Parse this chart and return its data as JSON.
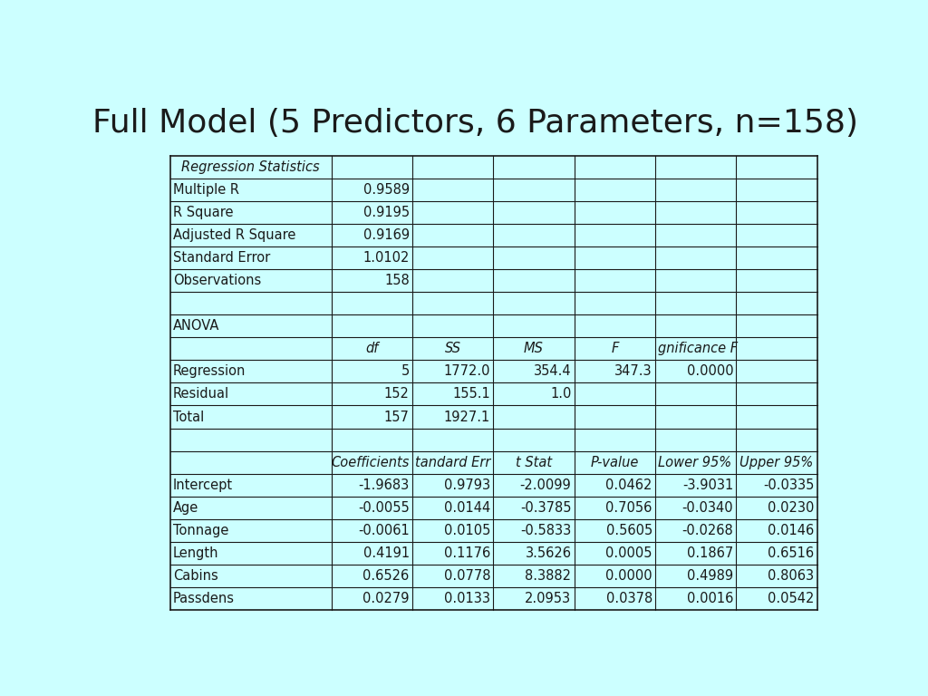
{
  "title": "Full Model (5 Predictors, 6 Parameters, n=158)",
  "background_color": "#CCFFFF",
  "title_color": "#1a1a1a",
  "title_fontsize": 26,
  "cell_text_color": "#1a1a1a",
  "border_color": "#1a1a1a",
  "reg_stats_rows": [
    [
      "Multiple R",
      "0.9589",
      "",
      "",
      "",
      ""
    ],
    [
      "R Square",
      "0.9195",
      "",
      "",
      "",
      ""
    ],
    [
      "Adjusted R Square",
      "0.9169",
      "",
      "",
      "",
      ""
    ],
    [
      "Standard Error",
      "1.0102",
      "",
      "",
      "",
      ""
    ],
    [
      "Observations",
      "158",
      "",
      "",
      "",
      ""
    ]
  ],
  "anova_data_rows": [
    [
      "Regression",
      "5",
      "1772.0",
      "354.4",
      "347.3",
      "0.0000"
    ],
    [
      "Residual",
      "152",
      "155.1",
      "1.0",
      "",
      ""
    ],
    [
      "Total",
      "157",
      "1927.1",
      "",
      "",
      ""
    ]
  ],
  "coeff_data_rows": [
    [
      "Intercept",
      "-1.9683",
      "0.9793",
      "-2.0099",
      "0.0462",
      "-3.9031",
      "-0.0335"
    ],
    [
      "Age",
      "-0.0055",
      "0.0144",
      "-0.3785",
      "0.7056",
      "-0.0340",
      "0.0230"
    ],
    [
      "Tonnage",
      "-0.0061",
      "0.0105",
      "-0.5833",
      "0.5605",
      "-0.0268",
      "0.0146"
    ],
    [
      "Length",
      "0.4191",
      "0.1176",
      "3.5626",
      "0.0005",
      "0.1867",
      "0.6516"
    ],
    [
      "Cabins",
      "0.6526",
      "0.0778",
      "8.3882",
      "0.0000",
      "0.4989",
      "0.8063"
    ],
    [
      "Passdens",
      "0.0279",
      "0.0133",
      "2.0953",
      "0.0378",
      "0.0016",
      "0.0542"
    ]
  ]
}
